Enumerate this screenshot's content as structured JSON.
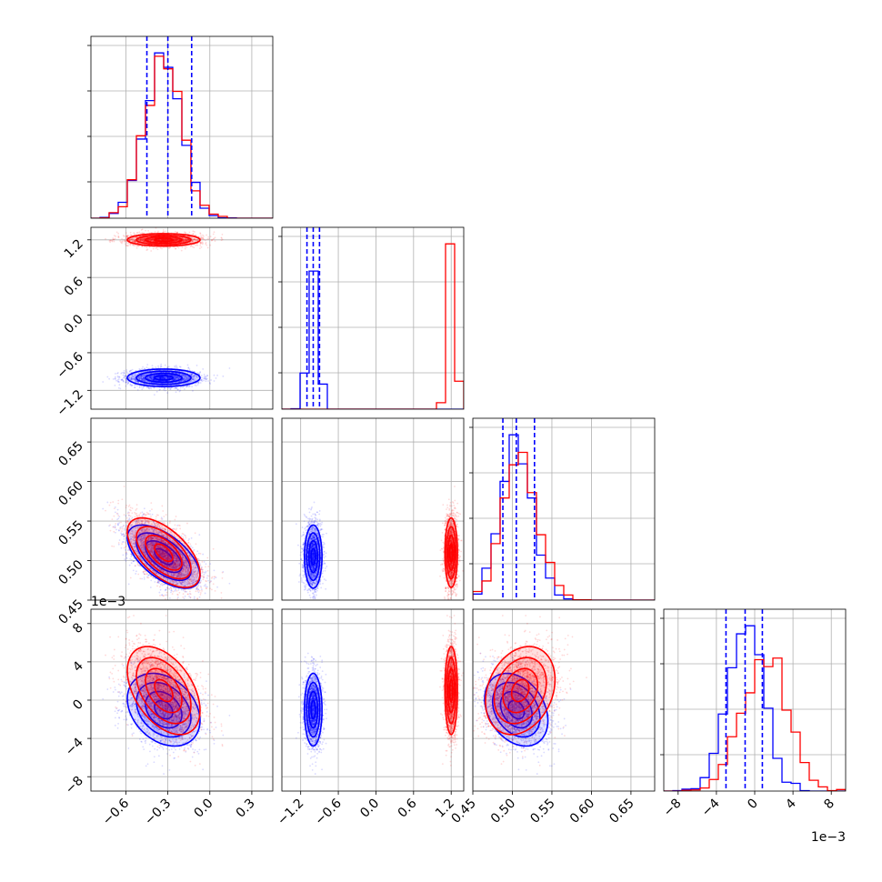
{
  "colors": {
    "series_blue": "#0000ff",
    "series_red": "#ff0000",
    "grid": "#b0b0b0",
    "frame": "#000000"
  },
  "chart_data": {
    "type": "corner",
    "params": [
      {
        "range": [
          -0.85,
          0.45
        ],
        "ticks": [
          -0.6,
          -0.3,
          0.0,
          0.3
        ],
        "tick_labels": [
          "−0.6",
          "−0.3",
          "0.0",
          "0.3"
        ],
        "offset_label": ""
      },
      {
        "range": [
          -1.5,
          1.4
        ],
        "ticks": [
          -1.2,
          -0.6,
          0.0,
          0.6,
          1.2
        ],
        "tick_labels": [
          "−1.2",
          "−0.6",
          "0.0",
          "0.6",
          "1.2"
        ],
        "offset_label": ""
      },
      {
        "range": [
          0.45,
          0.68
        ],
        "ticks": [
          0.45,
          0.5,
          0.55,
          0.6,
          0.65
        ],
        "tick_labels": [
          "0.45",
          "0.50",
          "0.55",
          "0.60",
          "0.65"
        ],
        "offset_label": ""
      },
      {
        "range": [
          -9.5,
          9.5
        ],
        "ticks": [
          -8,
          -4,
          0,
          4,
          8
        ],
        "tick_labels": [
          "−8",
          "−4",
          "0",
          "4",
          "8"
        ],
        "offset_label": "1e−3"
      }
    ],
    "series": [
      {
        "color": "#0000ff",
        "mean": [
          -0.33,
          -1.0,
          0.505,
          -1.0
        ],
        "sd": [
          0.13,
          0.07,
          0.02,
          1.9
        ],
        "corr": [
          [
            1,
            0,
            -0.6,
            -0.3
          ],
          [
            0,
            1,
            0,
            0
          ],
          [
            -0.6,
            0,
            1,
            -0.3
          ],
          [
            -0.3,
            0,
            -0.3,
            1
          ]
        ]
      },
      {
        "color": "#ff0000",
        "mean": [
          -0.33,
          1.2,
          0.51,
          1.0
        ],
        "sd": [
          0.13,
          0.05,
          0.022,
          2.3
        ],
        "corr": [
          [
            1,
            0,
            -0.6,
            -0.45
          ],
          [
            0,
            1,
            0,
            0
          ],
          [
            -0.6,
            0,
            1,
            0.25
          ],
          [
            -0.45,
            0,
            0.25,
            1
          ]
        ]
      }
    ],
    "quantile_lines": [
      [
        -0.45,
        -0.3,
        -0.13
      ],
      [
        -1.1,
        -1.0,
        -0.9
      ],
      [
        0.488,
        0.505,
        0.528
      ],
      [
        -3.0,
        -1.0,
        0.8
      ]
    ],
    "hist_bins": 20,
    "contour_levels": [
      0.5,
      1.0,
      1.5,
      2.0
    ],
    "grid": true
  }
}
